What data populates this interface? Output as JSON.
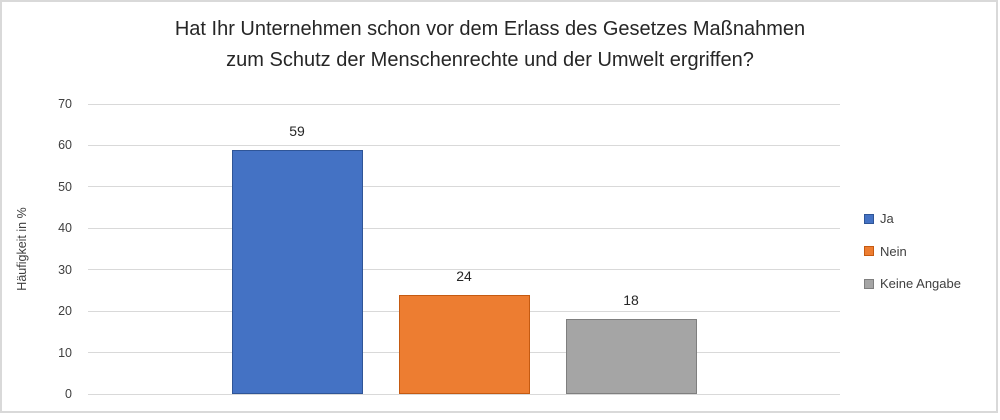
{
  "chart_data": {
    "type": "bar",
    "title": "Hat Ihr Unternehmen schon vor dem Erlass des Gesetzes Maßnahmen zum Schutz der Menschenrechte und der Umwelt ergriffen?",
    "title_lines": [
      "Hat Ihr Unternehmen schon vor dem Erlass des Gesetzes Maßnahmen",
      "zum Schutz der Menschenrechte und der Umwelt ergriffen?"
    ],
    "ylabel": "Häufigkeit in %",
    "xlabel": "",
    "ylim": [
      0,
      70
    ],
    "yticks": [
      0,
      10,
      20,
      30,
      40,
      50,
      60,
      70
    ],
    "grid": true,
    "legend_position": "right",
    "series": [
      {
        "name": "Ja",
        "value": 59,
        "color": "#4472C4",
        "border_color": "#2F5597"
      },
      {
        "name": "Nein",
        "value": 24,
        "color": "#ED7D31",
        "border_color": "#C55A11"
      },
      {
        "name": "Keine Angabe",
        "value": 18,
        "color": "#A5A5A5",
        "border_color": "#7F7F7F"
      }
    ],
    "value_labels": [
      59,
      24,
      18
    ],
    "colors": {
      "gridline": "#d9d9d9",
      "frame_border": "#d9d9d9",
      "title_text": "#262626",
      "axis_text": "#404040"
    }
  }
}
